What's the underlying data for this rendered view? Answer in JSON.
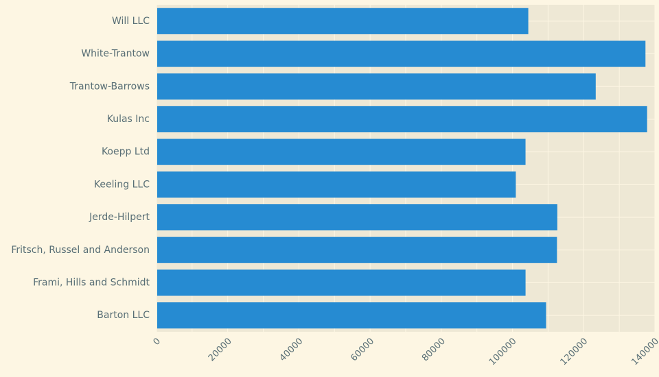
{
  "chart_data": {
    "type": "bar",
    "orientation": "horizontal",
    "title": "",
    "xlabel": "",
    "ylabel": "",
    "categories": [
      "Will LLC",
      "White-Trantow",
      "Trantow-Barrows",
      "Kulas Inc",
      "Koepp Ltd",
      "Keeling LLC",
      "Jerde-Hilpert",
      "Fritsch, Russel and Anderson",
      "Frami, Hills and Schmidt",
      "Barton LLC"
    ],
    "values": [
      104438,
      137352,
      123381,
      137817,
      103660,
      100935,
      112591,
      112495,
      103667,
      109438
    ],
    "xlim": [
      0,
      140000
    ],
    "xticks": [
      0,
      20000,
      40000,
      60000,
      80000,
      100000,
      120000,
      140000
    ],
    "xtick_labels": [
      "0",
      "20000",
      "40000",
      "60000",
      "80000",
      "100000",
      "120000",
      "140000"
    ],
    "grid": true,
    "legend": "none",
    "colors": {
      "bar": "#268bd2",
      "plot_background": "#eee8d5",
      "figure_background": "#fdf6e3",
      "grid": "#fdf6e3",
      "text": "#586e75"
    }
  }
}
